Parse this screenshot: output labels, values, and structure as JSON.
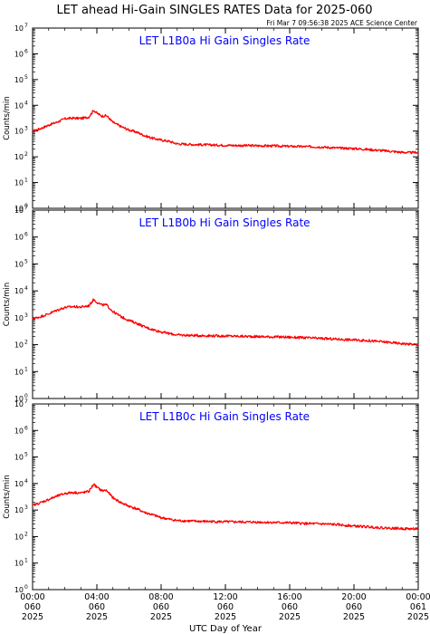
{
  "header": {
    "title": "LET ahead Hi-Gain SINGLES RATES Data for 2025-060",
    "timestamp": "Fri Mar  7 09:56:38 2025 ACE Science Center"
  },
  "xaxis": {
    "label": "UTC Day of Year",
    "ticks": [
      {
        "time": "00:00",
        "day": "060",
        "year": "2025"
      },
      {
        "time": "04:00",
        "day": "060",
        "year": "2025"
      },
      {
        "time": "08:00",
        "day": "060",
        "year": "2025"
      },
      {
        "time": "12:00",
        "day": "060",
        "year": "2025"
      },
      {
        "time": "16:00",
        "day": "060",
        "year": "2025"
      },
      {
        "time": "20:00",
        "day": "060",
        "year": "2025"
      },
      {
        "time": "00:00",
        "day": "061",
        "year": "2025"
      }
    ]
  },
  "colors": {
    "series": "#ff0000",
    "panel_title": "#0000ff",
    "axis": "#000000"
  },
  "chart_data": [
    {
      "type": "line",
      "title": "LET L1B0a Hi Gain Singles Rate",
      "ylabel": "Counts/min",
      "yscale": "log",
      "ylim": [
        1,
        10000000
      ],
      "yticks": [
        1,
        10,
        100,
        1000,
        10000,
        100000,
        1000000,
        10000000
      ],
      "xlabel": "UTC Day of Year",
      "xlim_hours": [
        0,
        24
      ],
      "series": [
        {
          "x": [
            0,
            0.5,
            1,
            1.5,
            2,
            2.5,
            3,
            3.5,
            3.8,
            4,
            4.3,
            4.6,
            5,
            5.5,
            6,
            6.5,
            7,
            7.5,
            8,
            8.5,
            9,
            10,
            11,
            12,
            13,
            14,
            15,
            16,
            17,
            18,
            19,
            20,
            21,
            22,
            23,
            23.5,
            24
          ],
          "values": [
            1000,
            1250,
            1700,
            2200,
            3000,
            3200,
            3100,
            3500,
            6500,
            5000,
            3800,
            4000,
            2200,
            1500,
            1100,
            900,
            650,
            520,
            450,
            400,
            320,
            300,
            290,
            280,
            275,
            270,
            265,
            255,
            250,
            240,
            220,
            210,
            190,
            170,
            150,
            145,
            150
          ]
        }
      ]
    },
    {
      "type": "line",
      "title": "LET L1B0b Hi Gain Singles Rate",
      "ylabel": "Counts/min",
      "yscale": "log",
      "ylim": [
        1,
        10000000
      ],
      "yticks": [
        1,
        10,
        100,
        1000,
        10000,
        100000,
        1000000,
        10000000
      ],
      "xlabel": "UTC Day of Year",
      "xlim_hours": [
        0,
        24
      ],
      "series": [
        {
          "x": [
            0,
            0.5,
            1,
            1.5,
            2,
            2.5,
            3,
            3.5,
            3.8,
            4,
            4.3,
            4.6,
            5,
            5.5,
            6,
            6.5,
            7,
            7.5,
            8,
            8.5,
            9,
            10,
            11,
            12,
            13,
            14,
            15,
            16,
            17,
            18,
            19,
            20,
            21,
            22,
            23,
            23.5,
            24
          ],
          "values": [
            900,
            1100,
            1400,
            1900,
            2400,
            2600,
            2500,
            2800,
            4800,
            3800,
            3000,
            3000,
            1700,
            1100,
            800,
            620,
            450,
            360,
            300,
            260,
            230,
            220,
            215,
            210,
            205,
            200,
            195,
            190,
            180,
            170,
            160,
            150,
            140,
            125,
            110,
            105,
            100
          ]
        }
      ]
    },
    {
      "type": "line",
      "title": "LET L1B0c Hi Gain Singles Rate",
      "ylabel": "Counts/min",
      "yscale": "log",
      "ylim": [
        1,
        10000000
      ],
      "yticks": [
        1,
        10,
        100,
        1000,
        10000,
        100000,
        1000000,
        10000000
      ],
      "xlabel": "UTC Day of Year",
      "xlim_hours": [
        0,
        24
      ],
      "series": [
        {
          "x": [
            0,
            0.5,
            1,
            1.5,
            2,
            2.5,
            3,
            3.5,
            3.8,
            4,
            4.3,
            4.6,
            5,
            5.5,
            6,
            6.5,
            7,
            7.5,
            8,
            8.5,
            9,
            10,
            11,
            12,
            13,
            14,
            15,
            16,
            17,
            18,
            19,
            20,
            21,
            22,
            23,
            23.5,
            24
          ],
          "values": [
            1500,
            1900,
            2500,
            3300,
            4200,
            4600,
            4400,
            5000,
            9500,
            7200,
            5400,
            5500,
            2900,
            1900,
            1400,
            1100,
            800,
            650,
            520,
            450,
            400,
            380,
            370,
            360,
            355,
            350,
            340,
            330,
            310,
            300,
            280,
            250,
            230,
            210,
            200,
            195,
            200
          ]
        }
      ]
    }
  ]
}
